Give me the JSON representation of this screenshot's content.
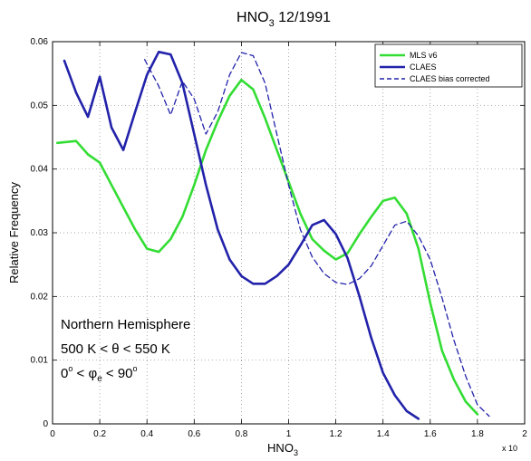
{
  "chart_data": {
    "type": "line",
    "title": "HNO",
    "title_sub": "3",
    "title_suffix": " 12/1991",
    "xlabel": "HNO",
    "xlabel_sub": "3",
    "x_scale_note": "x 10",
    "ylabel": "Relative Frequency",
    "xlim": [
      0,
      2
    ],
    "ylim": [
      0,
      0.06
    ],
    "xticks": [
      "0",
      "0.2",
      "0.4",
      "0.6",
      "0.8",
      "1",
      "1.2",
      "1.4",
      "1.6",
      "1.8",
      "2"
    ],
    "yticks": [
      "0",
      "0.01",
      "0.02",
      "0.03",
      "0.04",
      "0.05",
      "0.06"
    ],
    "grid": true,
    "legend_position": "top-right",
    "series": [
      {
        "name": "MLS v6",
        "color": "#33dd33",
        "style": "solid",
        "x": [
          0.02,
          0.1,
          0.15,
          0.2,
          0.25,
          0.3,
          0.35,
          0.4,
          0.45,
          0.5,
          0.55,
          0.6,
          0.65,
          0.7,
          0.75,
          0.8,
          0.85,
          0.9,
          0.95,
          1.0,
          1.05,
          1.1,
          1.15,
          1.2,
          1.25,
          1.3,
          1.35,
          1.4,
          1.45,
          1.5,
          1.55,
          1.6,
          1.65,
          1.7,
          1.75,
          1.8
        ],
        "values": [
          0.0441,
          0.0444,
          0.0423,
          0.041,
          0.0375,
          0.034,
          0.0305,
          0.0275,
          0.027,
          0.029,
          0.0325,
          0.0375,
          0.043,
          0.0475,
          0.0515,
          0.054,
          0.0525,
          0.048,
          0.043,
          0.038,
          0.033,
          0.029,
          0.0272,
          0.0258,
          0.0268,
          0.0298,
          0.0325,
          0.035,
          0.0355,
          0.033,
          0.0275,
          0.019,
          0.0115,
          0.007,
          0.0035,
          0.0015
        ]
      },
      {
        "name": "CLAES",
        "color": "#2222aa",
        "style": "solid",
        "x": [
          0.05,
          0.1,
          0.15,
          0.2,
          0.25,
          0.3,
          0.35,
          0.4,
          0.45,
          0.5,
          0.55,
          0.6,
          0.65,
          0.7,
          0.75,
          0.8,
          0.85,
          0.9,
          0.95,
          1.0,
          1.05,
          1.1,
          1.15,
          1.2,
          1.25,
          1.3,
          1.35,
          1.4,
          1.45,
          1.5,
          1.55
        ],
        "values": [
          0.057,
          0.052,
          0.0482,
          0.0545,
          0.0465,
          0.043,
          0.049,
          0.0548,
          0.0584,
          0.058,
          0.0535,
          0.0455,
          0.0375,
          0.0305,
          0.0258,
          0.0232,
          0.022,
          0.022,
          0.0232,
          0.025,
          0.028,
          0.0312,
          0.032,
          0.0298,
          0.026,
          0.02,
          0.0135,
          0.008,
          0.0045,
          0.002,
          0.0008
        ]
      },
      {
        "name": "CLAES bias corrected",
        "color": "#2222aa",
        "style": "dashed",
        "x": [
          0.39,
          0.45,
          0.5,
          0.55,
          0.6,
          0.65,
          0.7,
          0.75,
          0.8,
          0.85,
          0.9,
          0.95,
          1.0,
          1.05,
          1.1,
          1.15,
          1.2,
          1.25,
          1.3,
          1.35,
          1.4,
          1.45,
          1.5,
          1.55,
          1.6,
          1.65,
          1.7,
          1.75,
          1.8,
          1.85
        ],
        "values": [
          0.0572,
          0.053,
          0.0485,
          0.0538,
          0.051,
          0.0455,
          0.049,
          0.0548,
          0.0583,
          0.0578,
          0.0535,
          0.0455,
          0.0375,
          0.0305,
          0.0262,
          0.0236,
          0.0222,
          0.0219,
          0.0228,
          0.0248,
          0.028,
          0.0312,
          0.0318,
          0.0295,
          0.0258,
          0.0198,
          0.0132,
          0.0075,
          0.003,
          0.0012
        ]
      }
    ],
    "annotations": {
      "line1": "Northern Hemisphere",
      "line2": "500 K < θ < 550 K",
      "line3_pre": "0",
      "line3_deg1": "o",
      "line3_mid": " < φ",
      "line3_sub": "e",
      "line3_post": " < 90",
      "line3_deg2": "o"
    }
  }
}
